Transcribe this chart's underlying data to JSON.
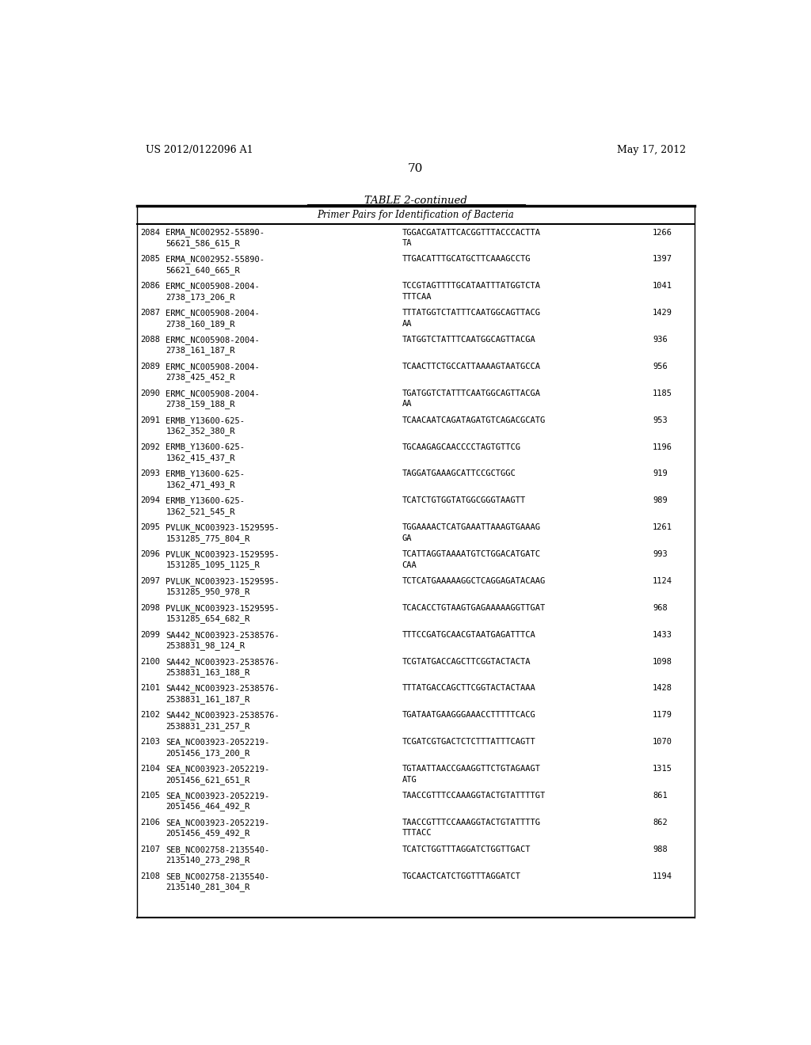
{
  "patent_left": "US 2012/0122096 A1",
  "patent_right": "May 17, 2012",
  "page_number": "70",
  "table_title": "TABLE 2-continued",
  "table_subtitle": "Primer Pairs for Identification of Bacteria",
  "rows": [
    [
      "2084",
      "ERMA_NC002952-55890-\n56621_586_615_R",
      "TGGACGATATTCACGGTTTACCCACTTA\nTA",
      "1266"
    ],
    [
      "2085",
      "ERMA_NC002952-55890-\n56621_640_665_R",
      "TTGACATTTGCATGCTTCAAAGCCTG",
      "1397"
    ],
    [
      "2086",
      "ERMC_NC005908-2004-\n2738_173_206_R",
      "TCCGTAGTTTTGCATAATTTATGGTCTA\nTTTCAA",
      "1041"
    ],
    [
      "2087",
      "ERMC_NC005908-2004-\n2738_160_189_R",
      "TTTATGGTCTATTTCAATGGCAGTTACG\nAA",
      "1429"
    ],
    [
      "2088",
      "ERMC_NC005908-2004-\n2738_161_187_R",
      "TATGGTCTATTTCAATGGCAGTTACGA",
      "936"
    ],
    [
      "2089",
      "ERMC_NC005908-2004-\n2738_425_452_R",
      "TCAACTTCTGCCATTAAAAGTAATGCCA",
      "956"
    ],
    [
      "2090",
      "ERMC_NC005908-2004-\n2738_159_188_R",
      "TGATGGTCTATTTCAATGGCAGTTACGA\nAA",
      "1185"
    ],
    [
      "2091",
      "ERMB_Y13600-625-\n1362_352_380_R",
      "TCAACAATCAGATAGATGTCAGACGCATG",
      "953"
    ],
    [
      "2092",
      "ERMB_Y13600-625-\n1362_415_437_R",
      "TGCAAGAGCAACCCCTAGTGTTCG",
      "1196"
    ],
    [
      "2093",
      "ERMB_Y13600-625-\n1362_471_493_R",
      "TAGGATGAAAGCATTCCGCTGGC",
      "919"
    ],
    [
      "2094",
      "ERMB_Y13600-625-\n1362_521_545_R",
      "TCATCTGTGGTATGGCGGGTAAGTT",
      "989"
    ],
    [
      "2095",
      "PVLUK_NC003923-1529595-\n1531285_775_804_R",
      "TGGAAAACTCATGAAATTAAAGTGAAAG\nGA",
      "1261"
    ],
    [
      "2096",
      "PVLUK_NC003923-1529595-\n1531285_1095_1125_R",
      "TCATTAGGTAAAATGTCTGGACATGATC\nCAA",
      "993"
    ],
    [
      "2097",
      "PVLUK_NC003923-1529595-\n1531285_950_978_R",
      "TCTCATGAAAAAGGCTCAGGAGATACAAG",
      "1124"
    ],
    [
      "2098",
      "PVLUK_NC003923-1529595-\n1531285_654_682_R",
      "TCACACCTGTAAGTGAGAAAAAGGTTGAT",
      "968"
    ],
    [
      "2099",
      "SA442_NC003923-2538576-\n2538831_98_124_R",
      "TTTCCGATGCAACGTAATGAGATTTCA",
      "1433"
    ],
    [
      "2100",
      "SA442_NC003923-2538576-\n2538831_163_188_R",
      "TCGTATGACCAGCTTCGGTACTACTA",
      "1098"
    ],
    [
      "2101",
      "SA442_NC003923-2538576-\n2538831_161_187_R",
      "TTTATGACCAGCTTCGGTACTACTAAA",
      "1428"
    ],
    [
      "2102",
      "SA442_NC003923-2538576-\n2538831_231_257_R",
      "TGATAATGAAGGGAAACCTTTTTCACG",
      "1179"
    ],
    [
      "2103",
      "SEA_NC003923-2052219-\n2051456_173_200_R",
      "TCGATCGTGACTCTCTTTATTTCAGTT",
      "1070"
    ],
    [
      "2104",
      "SEA_NC003923-2052219-\n2051456_621_651_R",
      "TGTAATTAACCGAAGGTTCTGTAGAAGT\nATG",
      "1315"
    ],
    [
      "2105",
      "SEA_NC003923-2052219-\n2051456_464_492_R",
      "TAACCGTTTCCAAAGGTACTGTATTTTGT",
      "861"
    ],
    [
      "2106",
      "SEA_NC003923-2052219-\n2051456_459_492_R",
      "TAACCGTTTCCAAAGGTACTGTATTTTG\nTTTACC",
      "862"
    ],
    [
      "2107",
      "SEB_NC002758-2135540-\n2135140_273_298_R",
      "TCATCTGGTTTAGGATCTGGTTGACT",
      "988"
    ],
    [
      "2108",
      "SEB_NC002758-2135540-\n2135140_281_304_R",
      "TGCAACTCATCTGGTTTAGGATCT",
      "1194"
    ]
  ]
}
